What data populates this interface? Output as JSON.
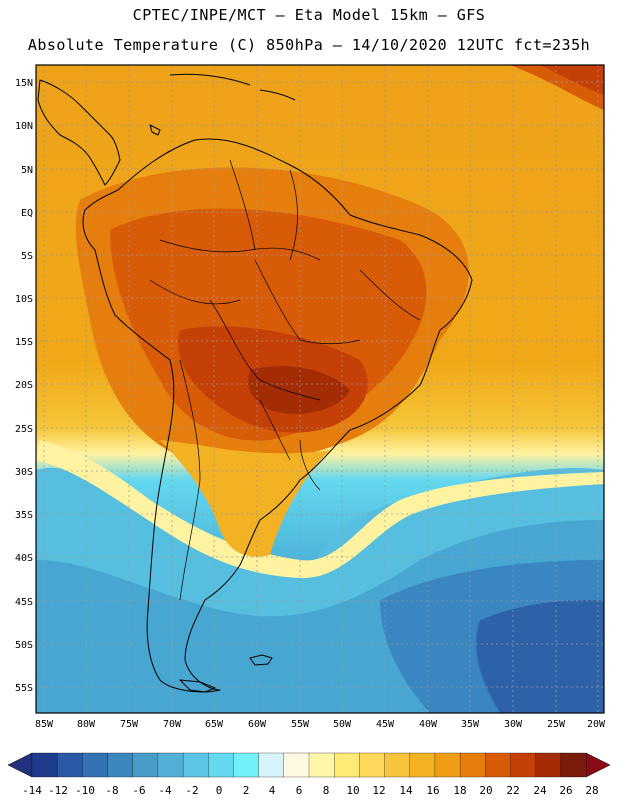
{
  "header": {
    "line1": "CPTEC/INPE/MCT –  Eta Model 15km – GFS",
    "line2": "Absolute Temperature (C) 850hPa – 14/10/2020 12UTC fct=235h"
  },
  "map": {
    "lat_labels": [
      "15N",
      "10N",
      "5N",
      "EQ",
      "5S",
      "10S",
      "15S",
      "20S",
      "25S",
      "30S",
      "35S",
      "40S",
      "45S",
      "50S",
      "55S"
    ],
    "lon_labels": [
      "85W",
      "80W",
      "75W",
      "70W",
      "65W",
      "60W",
      "55W",
      "50W",
      "45W",
      "40W",
      "35W",
      "30W",
      "25W",
      "20W"
    ]
  },
  "colorbar": {
    "labels": [
      "-14",
      "-12",
      "-10",
      "-8",
      "-6",
      "-4",
      "-2",
      "0",
      "2",
      "4",
      "6",
      "8",
      "10",
      "12",
      "14",
      "16",
      "18",
      "20",
      "22",
      "24",
      "26",
      "28"
    ],
    "colors": [
      "#1f3b8c",
      "#2a5aa6",
      "#3472b4",
      "#3c86c0",
      "#4a9cc8",
      "#52b0d8",
      "#5cc4e4",
      "#64d8ee",
      "#74f0f8",
      "#d6f4fa",
      "#fff8e2",
      "#fff6a8",
      "#ffea78",
      "#fdd85a",
      "#f8c43e",
      "#f2b224",
      "#ee9e14",
      "#e67e0e",
      "#d85c08",
      "#c44006",
      "#a42c04",
      "#7a1c0c"
    ],
    "low_color": "#23327e",
    "high_color": "#8a0a1a"
  }
}
